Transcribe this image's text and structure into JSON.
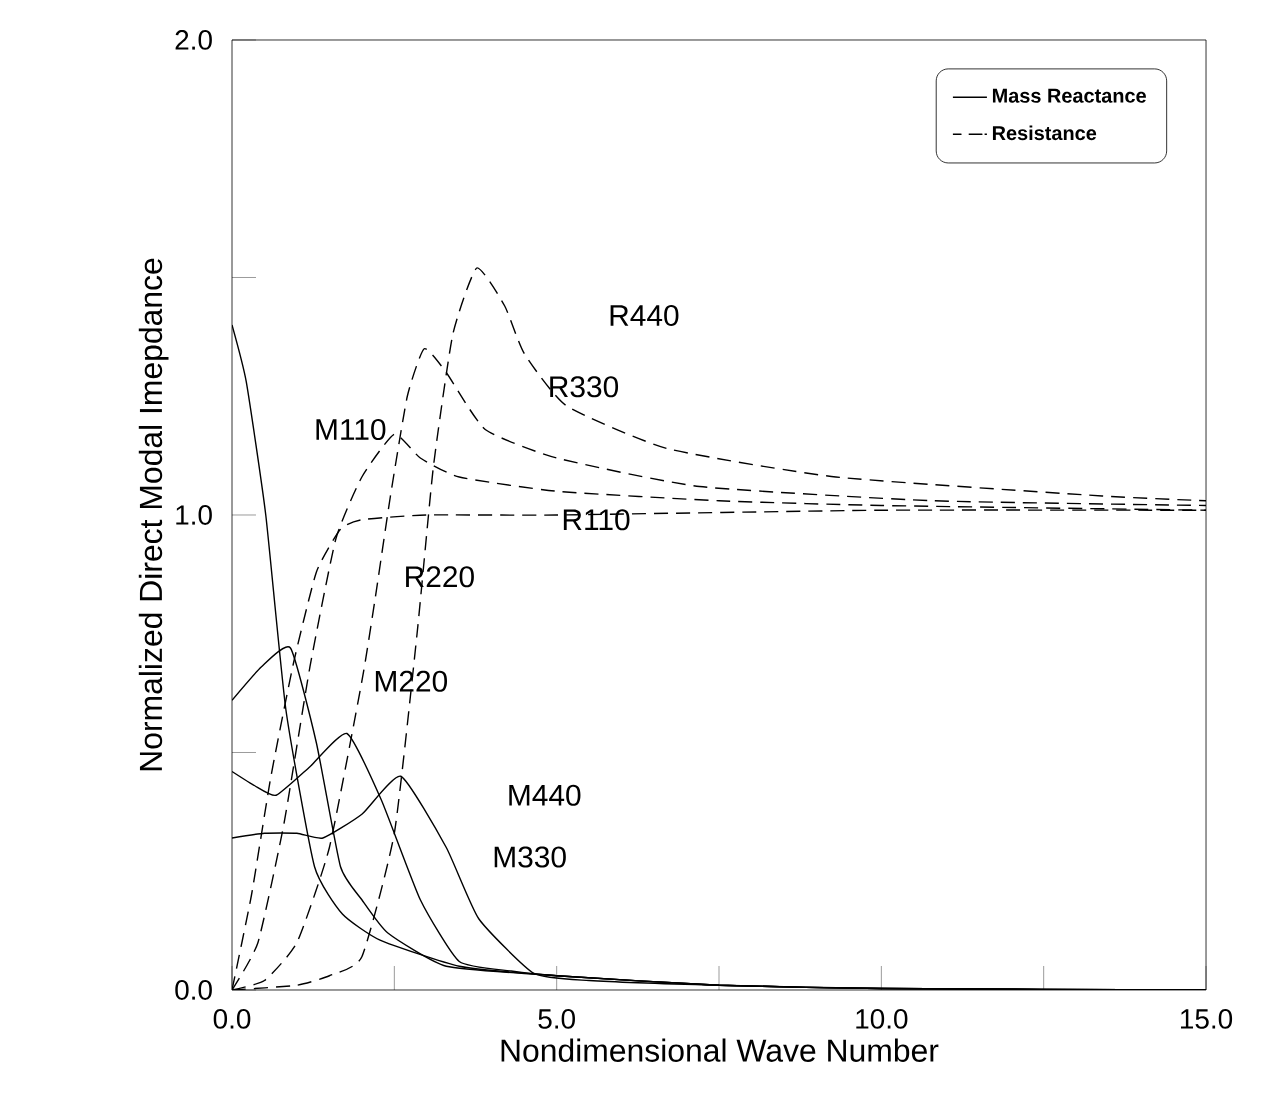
{
  "chart_data": {
    "type": "line",
    "xlabel": "Nondimensional Wave Number",
    "ylabel": "Normalized Direct Modal Imepdance",
    "xlim": [
      0,
      15
    ],
    "ylim": [
      0,
      2
    ],
    "xticks": [
      {
        "value": 0,
        "label": "0.0"
      },
      {
        "value": 2.5,
        "label": null
      },
      {
        "value": 5,
        "label": "5.0"
      },
      {
        "value": 7.5,
        "label": null
      },
      {
        "value": 10,
        "label": "10.0"
      },
      {
        "value": 12.5,
        "label": null
      },
      {
        "value": 15,
        "label": "15.0"
      }
    ],
    "yticks": [
      {
        "value": 0,
        "label": "0.0"
      },
      {
        "value": 0.5,
        "label": null
      },
      {
        "value": 1,
        "label": "1.0"
      },
      {
        "value": 1.5,
        "label": null
      },
      {
        "value": 2,
        "label": "2.0"
      }
    ],
    "legend": "top right",
    "marker": "none",
    "grid": false,
    "series": [
      {
        "name": "Mass Reactance",
        "color": "#000000",
        "line_style": "solid",
        "x": [
          0,
          0.22,
          0.52,
          0.83,
          1.27,
          1.7,
          2.28,
          3.5,
          5,
          7.5,
          10,
          15
        ],
        "values": [
          1.4,
          1.28,
          1.0,
          0.59,
          0.26,
          0.16,
          0.105,
          0.05,
          0.03,
          0.01,
          0.003,
          0
        ]
      },
      {
        "color": "#000000",
        "line_style": "solid",
        "x": [
          0,
          0.45,
          0.9,
          1.3,
          1.67,
          2.0,
          2.4,
          3.3,
          5,
          7.5,
          10,
          15
        ],
        "values": [
          0.61,
          0.68,
          0.72,
          0.52,
          0.26,
          0.19,
          0.12,
          0.05,
          0.03,
          0.01,
          0.003,
          0
        ]
      },
      {
        "color": "#000000",
        "line_style": "solid",
        "x": [
          0,
          0.35,
          0.68,
          1.2,
          1.77,
          2.3,
          2.9,
          3.5,
          4.3,
          5,
          7.5,
          10,
          15
        ],
        "values": [
          0.46,
          0.43,
          0.41,
          0.47,
          0.54,
          0.4,
          0.19,
          0.06,
          0.04,
          0.03,
          0.01,
          0.003,
          0
        ]
      },
      {
        "color": "#000000",
        "line_style": "solid",
        "x": [
          0,
          0.5,
          1.0,
          1.4,
          2.0,
          2.6,
          3.3,
          3.8,
          4.65,
          5.5,
          7.5,
          10,
          15
        ],
        "values": [
          0.32,
          0.33,
          0.33,
          0.32,
          0.37,
          0.45,
          0.3,
          0.15,
          0.035,
          0.02,
          0.01,
          0.003,
          0
        ]
      },
      {
        "name": "Resistance",
        "color": "#000000",
        "line_style": "dashed",
        "x": [
          0,
          0.3,
          0.6,
          0.95,
          1.3,
          1.67,
          2.0,
          3,
          5,
          10,
          15
        ],
        "values": [
          0,
          0.2,
          0.45,
          0.69,
          0.88,
          0.97,
          0.99,
          1.0,
          1.0,
          1.01,
          1.01
        ]
      },
      {
        "color": "#000000",
        "line_style": "dashed",
        "x": [
          0,
          0.4,
          0.8,
          1.2,
          1.6,
          2.0,
          2.5,
          2.9,
          3.5,
          5,
          7.5,
          10,
          15
        ],
        "values": [
          0,
          0.1,
          0.35,
          0.68,
          0.95,
          1.08,
          1.17,
          1.12,
          1.08,
          1.05,
          1.03,
          1.02,
          1.01
        ]
      },
      {
        "color": "#000000",
        "line_style": "dashed",
        "x": [
          0,
          0.5,
          1.0,
          1.5,
          2.0,
          2.2,
          2.44,
          2.7,
          2.96,
          3.3,
          3.9,
          5,
          7.2,
          10.8,
          15
        ],
        "values": [
          0,
          0.02,
          0.1,
          0.3,
          0.65,
          0.82,
          1.04,
          1.25,
          1.35,
          1.3,
          1.18,
          1.12,
          1.06,
          1.03,
          1.02
        ]
      },
      {
        "color": "#000000",
        "line_style": "dashed",
        "x": [
          0,
          1.0,
          1.5,
          2.0,
          2.5,
          2.85,
          3.1,
          3.4,
          3.77,
          4.2,
          4.5,
          5.15,
          6.7,
          9.3,
          13.4,
          15
        ],
        "values": [
          0,
          0.01,
          0.03,
          0.07,
          0.33,
          0.75,
          1.1,
          1.38,
          1.52,
          1.44,
          1.34,
          1.23,
          1.14,
          1.08,
          1.04,
          1.03
        ]
      }
    ],
    "annotations": [
      "M110",
      "M220",
      "M440",
      "M330",
      "R440",
      "R330",
      "R110",
      "R220"
    ]
  }
}
